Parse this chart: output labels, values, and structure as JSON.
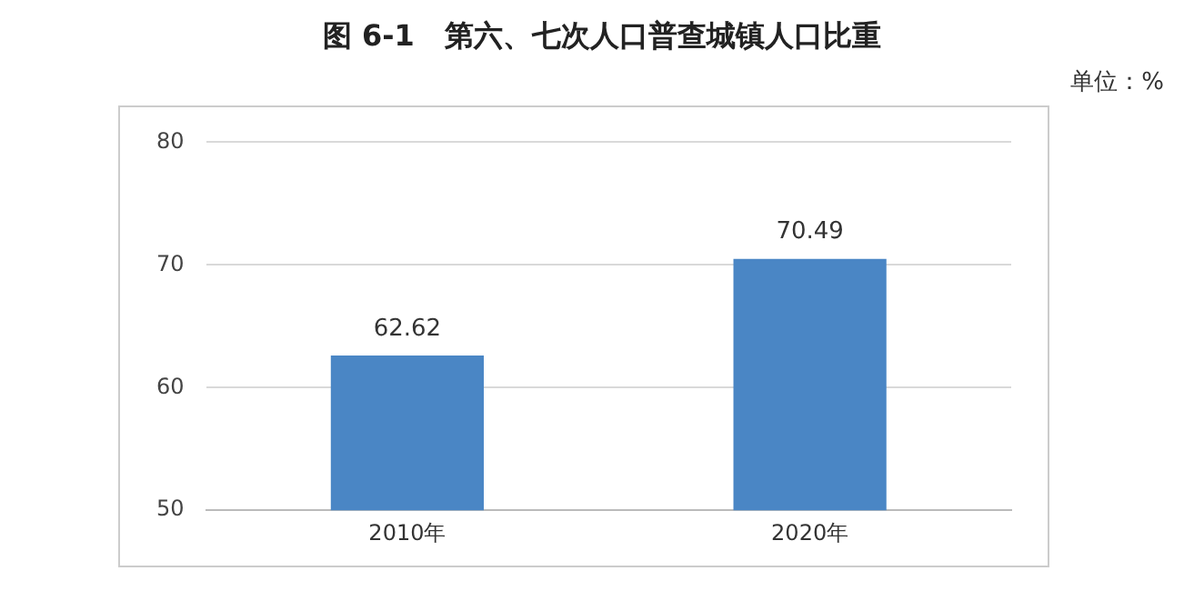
{
  "chart_data": {
    "type": "bar",
    "title": "图 6-1   第六、七次人口普查城镇人口比重",
    "annotations": [
      "单位：%"
    ],
    "categories": [
      "2010年",
      "2020年"
    ],
    "values": [
      62.62,
      70.49
    ],
    "color": "#4a86c5",
    "ylim": [
      50,
      80
    ],
    "yticks": [
      50,
      60,
      70,
      80
    ],
    "grid": "y",
    "data_labels": true
  }
}
